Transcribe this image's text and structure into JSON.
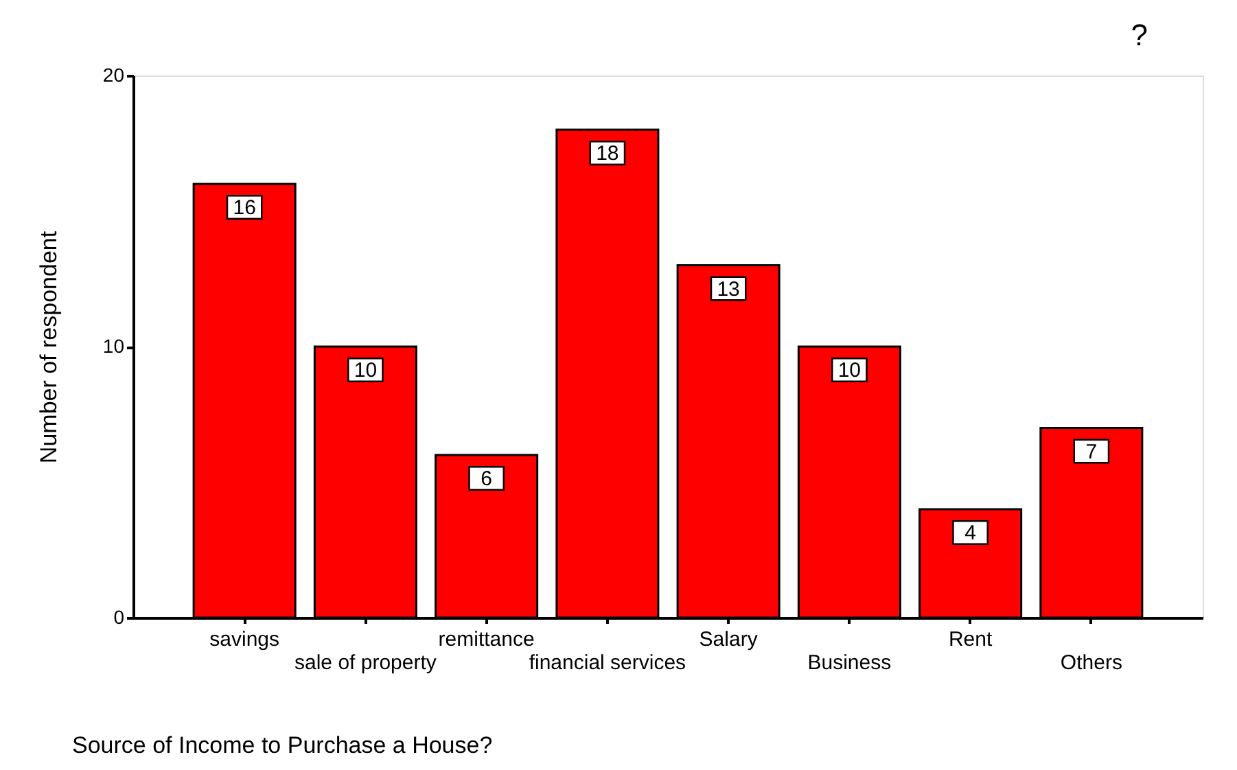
{
  "chart_data": {
    "type": "bar",
    "title": "?",
    "xlabel": "Source of Income to Purchase a House?",
    "ylabel": "Number of respondent",
    "categories": [
      "savings",
      "sale of property",
      "remittance",
      "financial services",
      "Salary",
      "Business",
      "Rent",
      "Others"
    ],
    "values": [
      16,
      10,
      6,
      18,
      13,
      10,
      4,
      7
    ],
    "color": "#ff0000",
    "ylim": [
      0,
      20
    ],
    "yticks": [
      0,
      10,
      20
    ],
    "grid": false,
    "data_labels": true
  }
}
